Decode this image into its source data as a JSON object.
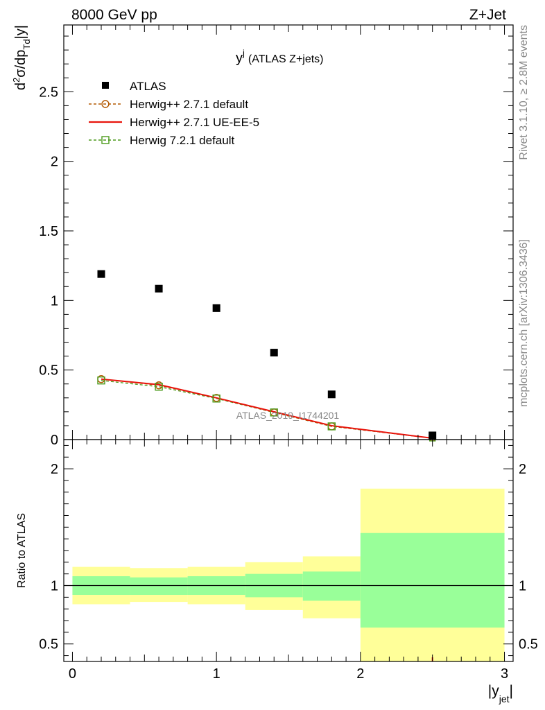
{
  "header": {
    "left": "8000 GeV pp",
    "right": "Z+Jet"
  },
  "side_labels": {
    "rivet": "Rivet 3.1.10, ≥ 2.8M events",
    "mcplots": "mcplots.cern.ch [arXiv:1306.3436]"
  },
  "colors": {
    "atlas": "#000000",
    "herwigpp_default": "#b35900",
    "herwigpp_ueee5": "#e8140c",
    "herwig721": "#4a9a1a",
    "band_inner": "#99ff99",
    "band_outer": "#ffff99",
    "watermark": "#888888"
  },
  "chart_data": [
    {
      "type": "scatter",
      "title": "y^j (ATLAS Z+jets)",
      "title_main": "y",
      "title_sup": "j",
      "title_rest": "(ATLAS Z+jets)",
      "ylabel": "d²σ/dp_Td|y|",
      "ylabel_parts": {
        "d": "d",
        "sup": "2",
        "mid": "σ/dp",
        "sub": "Td",
        "end": "|y|"
      },
      "watermark": "ATLAS_2019_I1744201",
      "xlim": [
        -0.06,
        3.06
      ],
      "ylim": [
        0,
        2.98
      ],
      "yticks": [
        0,
        0.5,
        1,
        1.5,
        2,
        2.5
      ],
      "ytick_labels": [
        "0",
        "0.5",
        "1",
        "1.5",
        "2",
        "2.5"
      ],
      "legend_position": "top-left",
      "series": [
        {
          "name": "ATLAS",
          "style": "square-marker",
          "x": [
            0.2,
            0.6,
            1.0,
            1.4,
            1.8,
            2.5
          ],
          "y": [
            1.19,
            1.085,
            0.945,
            0.625,
            0.325,
            0.03
          ]
        },
        {
          "name": "Herwig++ 2.7.1 default",
          "style": "dashed-circle",
          "x": [
            0.2,
            0.6,
            1.0,
            1.4,
            1.8,
            2.5
          ],
          "y": [
            0.435,
            0.39,
            0.3,
            0.195,
            0.095,
            0.01
          ]
        },
        {
          "name": "Herwig++ 2.7.1 UE-EE-5",
          "style": "solid-line",
          "x": [
            0.2,
            0.6,
            1.0,
            1.4,
            1.8,
            2.5
          ],
          "y": [
            0.435,
            0.395,
            0.3,
            0.2,
            0.1,
            0.01
          ]
        },
        {
          "name": "Herwig 7.2.1 default",
          "style": "dashed-square",
          "x": [
            0.2,
            0.6,
            1.0,
            1.4,
            1.8,
            2.5
          ],
          "y": [
            0.425,
            0.38,
            0.295,
            0.195,
            0.095,
            0.01
          ]
        }
      ]
    },
    {
      "type": "area",
      "ylabel": "Ratio to ATLAS",
      "xlabel": "|y_jet|",
      "xlabel_parts": {
        "main": "|y",
        "sub": "jet",
        "end": "|"
      },
      "xlim": [
        -0.06,
        3.06
      ],
      "ylim": [
        0.35,
        2.25
      ],
      "xticks": [
        0,
        1,
        2,
        3
      ],
      "xtick_labels": [
        "0",
        "1",
        "2",
        "3"
      ],
      "yticks": [
        0.5,
        1,
        2
      ],
      "ytick_labels": [
        "0.5",
        "1",
        "2"
      ],
      "reference": 1.0,
      "bins": [
        {
          "lo": 0.0,
          "hi": 0.4,
          "inner": [
            0.92,
            1.08
          ],
          "outer": [
            0.84,
            1.16
          ]
        },
        {
          "lo": 0.4,
          "hi": 0.8,
          "inner": [
            0.92,
            1.07
          ],
          "outer": [
            0.86,
            1.15
          ]
        },
        {
          "lo": 0.8,
          "hi": 1.2,
          "inner": [
            0.92,
            1.08
          ],
          "outer": [
            0.84,
            1.16
          ]
        },
        {
          "lo": 1.2,
          "hi": 1.6,
          "inner": [
            0.9,
            1.1
          ],
          "outer": [
            0.79,
            1.2
          ]
        },
        {
          "lo": 1.6,
          "hi": 2.0,
          "inner": [
            0.87,
            1.12
          ],
          "outer": [
            0.72,
            1.25
          ]
        },
        {
          "lo": 2.0,
          "hi": 3.0,
          "inner": [
            0.64,
            1.45
          ],
          "outer": [
            0.35,
            1.83
          ]
        }
      ]
    }
  ]
}
